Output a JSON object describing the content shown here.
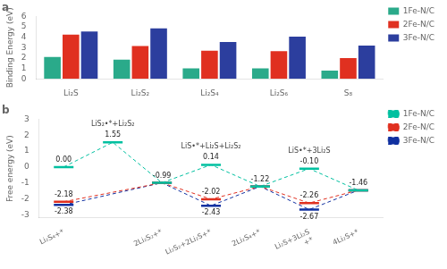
{
  "chart_data": [
    {
      "type": "bar",
      "title": "a",
      "categories": [
        "Li₂S",
        "Li₂S₂",
        "Li₂S₄",
        "Li₂S₆",
        "S₈"
      ],
      "series": [
        {
          "name": "1Fe-N/C",
          "color": "#2aaa8a",
          "values": [
            2.1,
            1.85,
            1.0,
            1.0,
            0.8
          ]
        },
        {
          "name": "2Fe-N/C",
          "color": "#e03020",
          "values": [
            4.25,
            3.15,
            2.7,
            2.65,
            2.0
          ]
        },
        {
          "name": "3Fe-N/C",
          "color": "#2c3e9e",
          "values": [
            4.55,
            4.85,
            3.55,
            4.05,
            3.2
          ]
        }
      ],
      "ylabel": "Binding Energy (eV)",
      "ylim": [
        0,
        6
      ],
      "yticks": [
        0,
        1,
        2,
        3,
        4,
        5,
        6
      ],
      "grid": false,
      "legend": "upper right"
    },
    {
      "type": "line",
      "title": "b",
      "categories": [
        "Li₂S₄+*",
        null,
        "2Li₂S₂+*",
        "Li₂S₂+2Li₂S+*",
        "2Li₂S₄+*",
        "Li₂S+3Li₂S\n+*",
        "4Li₂S+*"
      ],
      "series": [
        {
          "name": "1Fe-N/C",
          "color": "#00c0a0",
          "line_style": "dashed",
          "marker": "line",
          "values": [
            0.0,
            1.55,
            -0.99,
            0.14,
            -1.22,
            -0.1,
            -1.46
          ],
          "value_labels": [
            "0.00",
            "1.55",
            "-0.99",
            "0.14",
            "-1.22",
            "-0.10",
            "-1.46"
          ],
          "notes": [
            null,
            "LiS₂•*+Li₂S₂",
            null,
            "LiS•*+Li₂S+Li₂S₂",
            null,
            "LiS•*+3Li₂S",
            null
          ]
        },
        {
          "name": "2Fe-N/C",
          "color": "#e03020",
          "line_style": "dashed",
          "marker": "line",
          "values": [
            -2.18,
            null,
            -0.99,
            -2.02,
            -1.22,
            -2.26,
            -1.46
          ],
          "value_labels": [
            "-2.18",
            null,
            null,
            "-2.02",
            null,
            "-2.26",
            null
          ]
        },
        {
          "name": "3Fe-N/C",
          "color": "#1030a0",
          "line_style": "dashed",
          "marker": "line",
          "values": [
            -2.38,
            null,
            -0.99,
            -2.43,
            -1.22,
            -2.67,
            -1.46
          ],
          "value_labels": [
            "-2.38",
            null,
            null,
            "-2.43",
            null,
            "-2.67",
            null
          ]
        }
      ],
      "ylabel": "Free energy (eV)",
      "ylim": [
        -3.2,
        3.0
      ],
      "yticks": [
        -3,
        -2,
        -1,
        0,
        1,
        2,
        3
      ],
      "grid": false,
      "legend": "upper right",
      "data_labels": true
    }
  ]
}
